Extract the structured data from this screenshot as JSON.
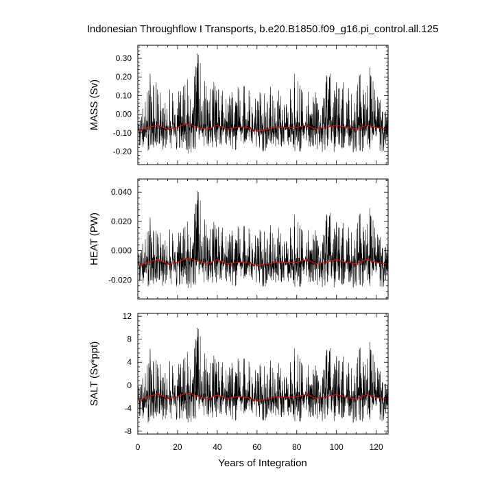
{
  "title": "Indonesian Throughflow I Transports, b.e20.B1850.f09_g16.pi_control.all.125",
  "xlabel": "Years of Integration",
  "x_tick_labels": [
    "0",
    "20",
    "40",
    "60",
    "80",
    "100",
    "120"
  ],
  "colors": {
    "raw_series": "#000000",
    "smoothed_series": "#ff0000"
  },
  "chart_data": [
    {
      "type": "line",
      "ylabel": "MASS (Sv)",
      "xlim": [
        0,
        126
      ],
      "ylim": [
        -0.27,
        0.37
      ],
      "yticks": [
        -0.2,
        -0.1,
        0.0,
        0.1,
        0.2,
        0.3
      ],
      "ytick_labels": [
        "-0.20",
        "-0.10",
        "0.00",
        "0.10",
        "0.20",
        "0.30"
      ],
      "grid": false,
      "series": [
        {
          "style": "thin black monthly values",
          "x": [
            0,
            3,
            6,
            9,
            12,
            15,
            18,
            21,
            24,
            27,
            30,
            33,
            36,
            39,
            42,
            45,
            48,
            51,
            54,
            57,
            60,
            63,
            66,
            69,
            72,
            75,
            78,
            81,
            84,
            87,
            90,
            93,
            96,
            99,
            102,
            105,
            108,
            111,
            114,
            117,
            120,
            123,
            126
          ],
          "y": [
            -0.05,
            0.13,
            0.24,
            0.18,
            0.1,
            0.17,
            0.12,
            0.17,
            0.25,
            0.1,
            0.36,
            0.22,
            0.14,
            0.2,
            0.16,
            0.11,
            0.12,
            0.16,
            0.18,
            0.12,
            0.1,
            0.15,
            0.17,
            0.1,
            0.15,
            0.09,
            0.27,
            0.2,
            0.12,
            0.12,
            0.12,
            0.08,
            0.27,
            0.17,
            0.18,
            0.16,
            0.11,
            0.28,
            0.13,
            0.27,
            0.16,
            0.11,
            0.02
          ],
          "y_min": [
            -0.2,
            -0.18,
            -0.21,
            -0.17,
            -0.19,
            -0.2,
            -0.19,
            -0.2,
            -0.24,
            -0.21,
            -0.19,
            -0.18,
            -0.2,
            -0.19,
            -0.21,
            -0.17,
            -0.19,
            -0.2,
            -0.24,
            -0.18,
            -0.19,
            -0.21,
            -0.19,
            -0.18,
            -0.2,
            -0.17,
            -0.19,
            -0.22,
            -0.18,
            -0.2,
            -0.19,
            -0.21,
            -0.18,
            -0.21,
            -0.19,
            -0.18,
            -0.2,
            -0.26,
            -0.2,
            -0.19,
            -0.18,
            -0.21,
            -0.18
          ]
        },
        {
          "style": "red smoothed",
          "x": [
            0,
            5,
            10,
            15,
            20,
            25,
            30,
            35,
            40,
            45,
            50,
            55,
            60,
            65,
            70,
            75,
            80,
            85,
            90,
            95,
            100,
            105,
            110,
            115,
            120,
            125
          ],
          "y": [
            -0.09,
            -0.07,
            -0.06,
            -0.08,
            -0.07,
            -0.05,
            -0.07,
            -0.08,
            -0.06,
            -0.08,
            -0.07,
            -0.07,
            -0.09,
            -0.08,
            -0.07,
            -0.07,
            -0.07,
            -0.06,
            -0.08,
            -0.07,
            -0.06,
            -0.07,
            -0.08,
            -0.06,
            -0.07,
            -0.08
          ]
        }
      ]
    },
    {
      "type": "line",
      "ylabel": "HEAT (PW)",
      "xlim": [
        0,
        126
      ],
      "ylim": [
        -0.033,
        0.049
      ],
      "yticks": [
        -0.02,
        0.0,
        0.02,
        0.04
      ],
      "ytick_labels": [
        "-0.020",
        "0.000",
        "0.020",
        "0.040"
      ],
      "grid": false,
      "series": [
        {
          "style": "thin black monthly values",
          "x": [
            0,
            3,
            6,
            9,
            12,
            15,
            18,
            21,
            24,
            27,
            30,
            33,
            36,
            39,
            42,
            45,
            48,
            51,
            54,
            57,
            60,
            63,
            66,
            69,
            72,
            75,
            78,
            81,
            84,
            87,
            90,
            93,
            96,
            99,
            102,
            105,
            108,
            111,
            114,
            117,
            120,
            123,
            126
          ],
          "y": [
            0.0,
            0.016,
            0.025,
            0.014,
            0.012,
            0.019,
            0.012,
            0.017,
            0.026,
            0.012,
            0.045,
            0.027,
            0.015,
            0.023,
            0.02,
            0.013,
            0.014,
            0.018,
            0.02,
            0.015,
            0.012,
            0.018,
            0.02,
            0.012,
            0.018,
            0.011,
            0.031,
            0.022,
            0.014,
            0.014,
            0.014,
            0.01,
            0.032,
            0.02,
            0.02,
            0.018,
            0.013,
            0.033,
            0.016,
            0.031,
            0.019,
            0.013,
            0.004
          ],
          "y_min": [
            -0.025,
            -0.023,
            -0.026,
            -0.022,
            -0.024,
            -0.025,
            -0.024,
            -0.026,
            -0.029,
            -0.026,
            -0.024,
            -0.023,
            -0.025,
            -0.024,
            -0.026,
            -0.022,
            -0.024,
            -0.025,
            -0.029,
            -0.023,
            -0.024,
            -0.026,
            -0.024,
            -0.023,
            -0.025,
            -0.022,
            -0.024,
            -0.027,
            -0.023,
            -0.025,
            -0.024,
            -0.026,
            -0.023,
            -0.026,
            -0.024,
            -0.023,
            -0.025,
            -0.031,
            -0.025,
            -0.024,
            -0.023,
            -0.026,
            -0.023
          ]
        },
        {
          "style": "red smoothed",
          "x": [
            0,
            5,
            10,
            15,
            20,
            25,
            30,
            35,
            40,
            45,
            50,
            55,
            60,
            65,
            70,
            75,
            80,
            85,
            90,
            95,
            100,
            105,
            110,
            115,
            120,
            125
          ],
          "y": [
            -0.01,
            -0.008,
            -0.006,
            -0.009,
            -0.008,
            -0.005,
            -0.007,
            -0.009,
            -0.006,
            -0.009,
            -0.008,
            -0.008,
            -0.01,
            -0.009,
            -0.008,
            -0.008,
            -0.008,
            -0.006,
            -0.009,
            -0.008,
            -0.006,
            -0.008,
            -0.009,
            -0.006,
            -0.008,
            -0.009
          ]
        }
      ]
    },
    {
      "type": "line",
      "ylabel": "SALT (Sv*ppt)",
      "xlim": [
        0,
        126
      ],
      "ylim": [
        -8.5,
        12.5
      ],
      "yticks": [
        -8,
        -4,
        0,
        4,
        8,
        12
      ],
      "ytick_labels": [
        "-8",
        "-4",
        "0",
        "4",
        "8",
        "12"
      ],
      "grid": false,
      "series": [
        {
          "style": "thin black monthly values",
          "x": [
            0,
            3,
            6,
            9,
            12,
            15,
            18,
            21,
            24,
            27,
            30,
            33,
            36,
            39,
            42,
            45,
            48,
            51,
            54,
            57,
            60,
            63,
            66,
            69,
            72,
            75,
            78,
            81,
            84,
            87,
            90,
            93,
            96,
            99,
            102,
            105,
            108,
            111,
            114,
            117,
            120,
            123,
            126
          ],
          "y": [
            0.5,
            4.0,
            7.0,
            4.5,
            3.5,
            5.5,
            3.5,
            5.0,
            7.5,
            3.5,
            11.0,
            7.0,
            4.0,
            6.0,
            5.0,
            3.5,
            4.0,
            5.0,
            5.5,
            4.0,
            3.0,
            4.5,
            5.0,
            3.0,
            4.5,
            2.5,
            8.0,
            6.0,
            3.5,
            3.5,
            3.5,
            2.5,
            8.0,
            5.0,
            5.5,
            4.5,
            3.0,
            8.5,
            4.0,
            8.0,
            5.0,
            3.5,
            0.0
          ],
          "y_min": [
            -6.5,
            -6.0,
            -7.0,
            -5.5,
            -6.0,
            -6.5,
            -6.0,
            -6.5,
            -7.5,
            -6.5,
            -6.0,
            -5.5,
            -6.5,
            -6.0,
            -6.5,
            -5.5,
            -6.0,
            -6.5,
            -7.5,
            -5.5,
            -6.0,
            -6.5,
            -6.0,
            -5.5,
            -6.5,
            -5.5,
            -6.0,
            -7.0,
            -5.5,
            -6.5,
            -6.0,
            -6.5,
            -5.5,
            -6.5,
            -6.0,
            -5.5,
            -6.5,
            -8.0,
            -6.5,
            -6.0,
            -5.5,
            -6.5,
            -5.5
          ]
        },
        {
          "style": "red smoothed",
          "x": [
            0,
            5,
            10,
            15,
            20,
            25,
            30,
            35,
            40,
            45,
            50,
            55,
            60,
            65,
            70,
            75,
            80,
            85,
            90,
            95,
            100,
            105,
            110,
            115,
            120,
            125
          ],
          "y": [
            -2.6,
            -2.0,
            -1.5,
            -2.3,
            -2.0,
            -1.3,
            -1.9,
            -2.4,
            -1.7,
            -2.3,
            -2.0,
            -2.1,
            -2.7,
            -2.4,
            -2.0,
            -2.1,
            -2.0,
            -1.6,
            -2.3,
            -2.0,
            -1.6,
            -2.1,
            -2.4,
            -1.6,
            -2.1,
            -2.4
          ]
        }
      ]
    }
  ]
}
